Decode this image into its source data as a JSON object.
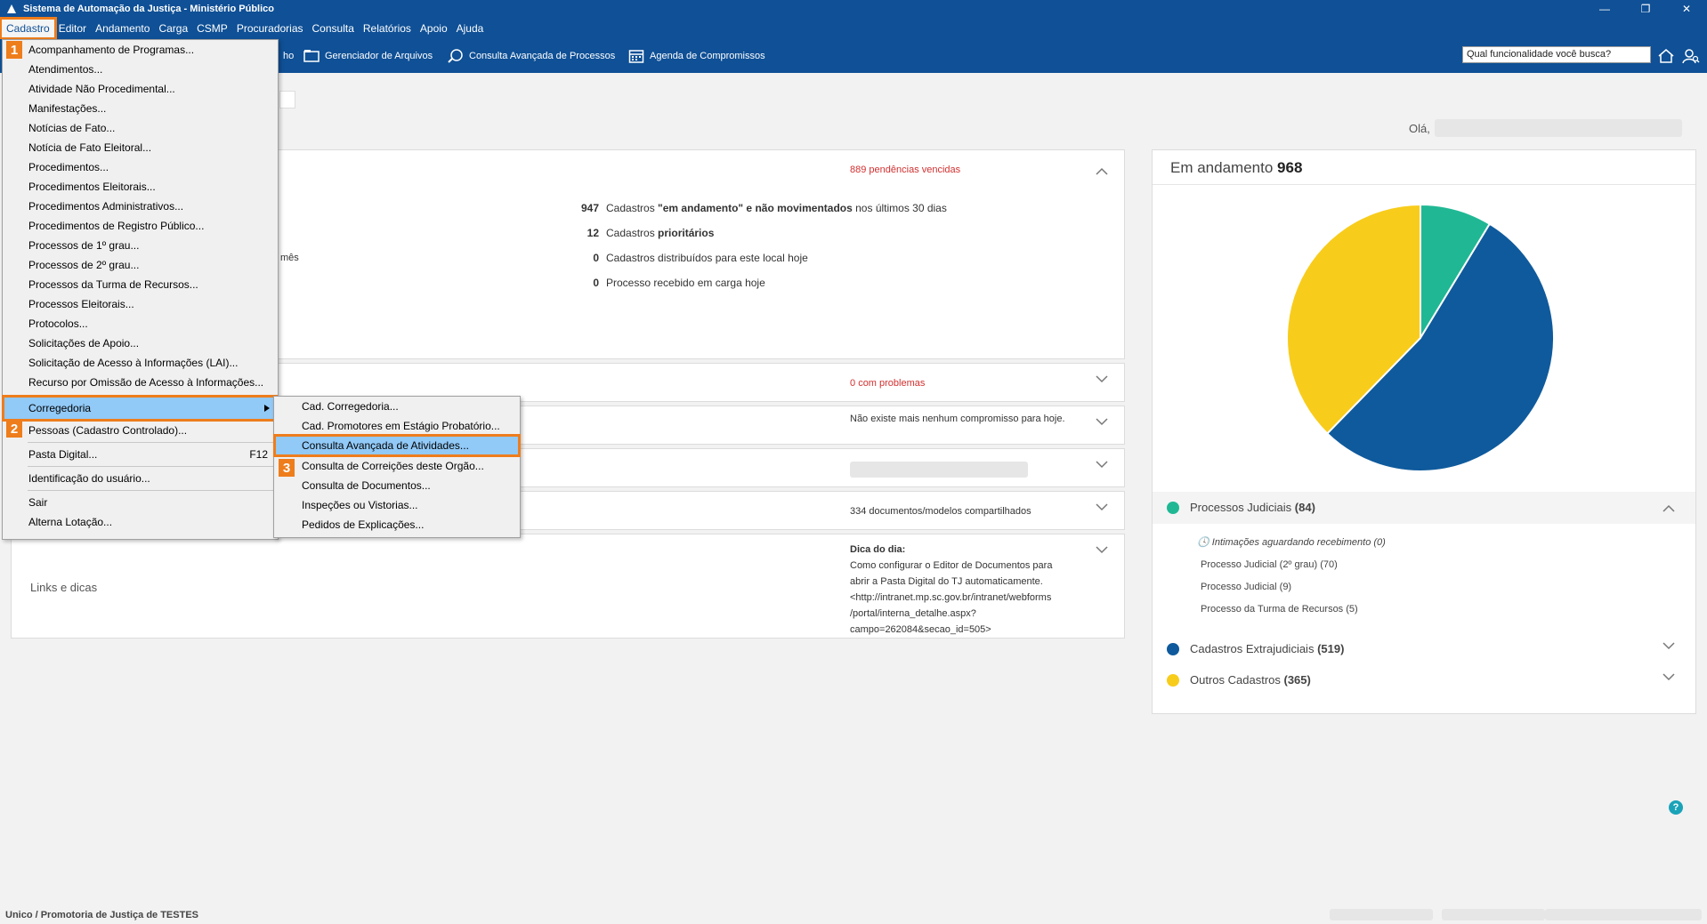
{
  "titlebar": {
    "title": "Sistema de Automação da Justiça - Ministério Público",
    "minimize": "—",
    "restore": "❐",
    "close": "✕"
  },
  "menubar": {
    "items": [
      "Cadastro",
      "Editor",
      "Andamento",
      "Carga",
      "CSMP",
      "Procuradorias",
      "Consulta",
      "Relatórios",
      "Apoio",
      "Ajuda"
    ]
  },
  "toolbar": {
    "partial_label": "ho",
    "files": "Gerenciador de Arquivos",
    "advanced_query": "Consulta Avançada de Processos",
    "agenda": "Agenda de Compromissos",
    "search_value": "Qual funcionalidade você busca?"
  },
  "greeting": "Olá,",
  "pending": {
    "count": "889",
    "label": "pendências vencidas"
  },
  "stats": [
    {
      "num": "947",
      "pre": "Cadastros ",
      "bold": "\"em andamento\" e não movimentados",
      "post": " nos últimos 30 dias"
    },
    {
      "num": "12",
      "pre": "Cadastros ",
      "bold": "prioritários",
      "post": ""
    },
    {
      "num": "0",
      "pre": "Cadastros distribuídos para este local hoje",
      "bold": "",
      "post": ""
    },
    {
      "num": "0",
      "pre": "Processo recebido em carga hoje",
      "bold": "",
      "post": ""
    }
  ],
  "partial_mes": "mês",
  "problems": {
    "count": "0",
    "label": "com problemas"
  },
  "commitments": "Não existe mais nenhum compromisso para hoje.",
  "shared_docs": {
    "count": "334",
    "label": "documentos/modelos compartilhados"
  },
  "links_title": "Links e dicas",
  "tip": {
    "title": "Dica do dia:",
    "lines": [
      "Como configurar o Editor de Documentos para",
      "abrir a Pasta Digital do TJ automaticamente.",
      "<http://intranet.mp.sc.gov.br/intranet/webforms",
      "/portal/interna_detalhe.aspx?",
      "campo=262084&secao_id=505>"
    ]
  },
  "side_panel": {
    "title": "Em andamento",
    "total": "968",
    "groups": [
      {
        "label": "Processos Judiciais",
        "count": "(84)"
      },
      {
        "label": "Cadastros Extrajudiciais",
        "count": "(519)"
      },
      {
        "label": "Outros Cadastros",
        "count": "(365)"
      }
    ],
    "sub_items": [
      "Intimações aguardando recebimento (0)",
      "Processo Judicial (2º grau) (70)",
      "Processo Judicial (9)",
      "Processo da Turma de Recursos (5)"
    ]
  },
  "chart_data": {
    "type": "pie",
    "title": "",
    "slices": [
      {
        "label": "Processos Judiciais",
        "value": 84,
        "color": "#20b894"
      },
      {
        "label": "Cadastros Extrajudiciais",
        "value": 519,
        "color": "#0f5a9c"
      },
      {
        "label": "Outros Cadastros",
        "value": 365,
        "color": "#f8cc1b"
      }
    ]
  },
  "cadastro_menu": {
    "items": [
      "Acompanhamento de Programas...",
      "Atendimentos...",
      "Atividade Não Procedimental...",
      "Manifestações...",
      "Notícias de Fato...",
      "Notícia de Fato Eleitoral...",
      "Procedimentos...",
      "Procedimentos Eleitorais...",
      "Procedimentos Administrativos...",
      "Procedimentos de Registro Público...",
      "Processos de 1º grau...",
      "Processos de 2º grau...",
      "Processos da Turma de Recursos...",
      "Processos Eleitorais...",
      "Protocolos...",
      "Solicitações de Apoio...",
      "Solicitação de Acesso à Informações (LAI)...",
      "Recurso por Omissão de Acesso à Informações..."
    ],
    "corregedoria": "Corregedoria",
    "pessoas": "Pessoas (Cadastro Controlado)...",
    "pasta": "Pasta Digital...",
    "pasta_shortcut": "F12",
    "identificacao": "Identificação do usuário...",
    "sair": "Sair",
    "alterna": "Alterna Lotação..."
  },
  "corregedoria_menu": {
    "items": [
      "Cad. Corregedoria...",
      "Cad. Promotores em Estágio Probatório...",
      "Consulta Avançada de Atividades...",
      "Consulta de Correições deste Orgão...",
      "Consulta de Documentos...",
      "Inspeções ou Vistorias...",
      "Pedidos de Explicações..."
    ]
  },
  "badges": [
    "1",
    "2",
    "3"
  ],
  "statusbar": "Unico / Promotoria de Justiça de TESTES",
  "help_icon": "?"
}
